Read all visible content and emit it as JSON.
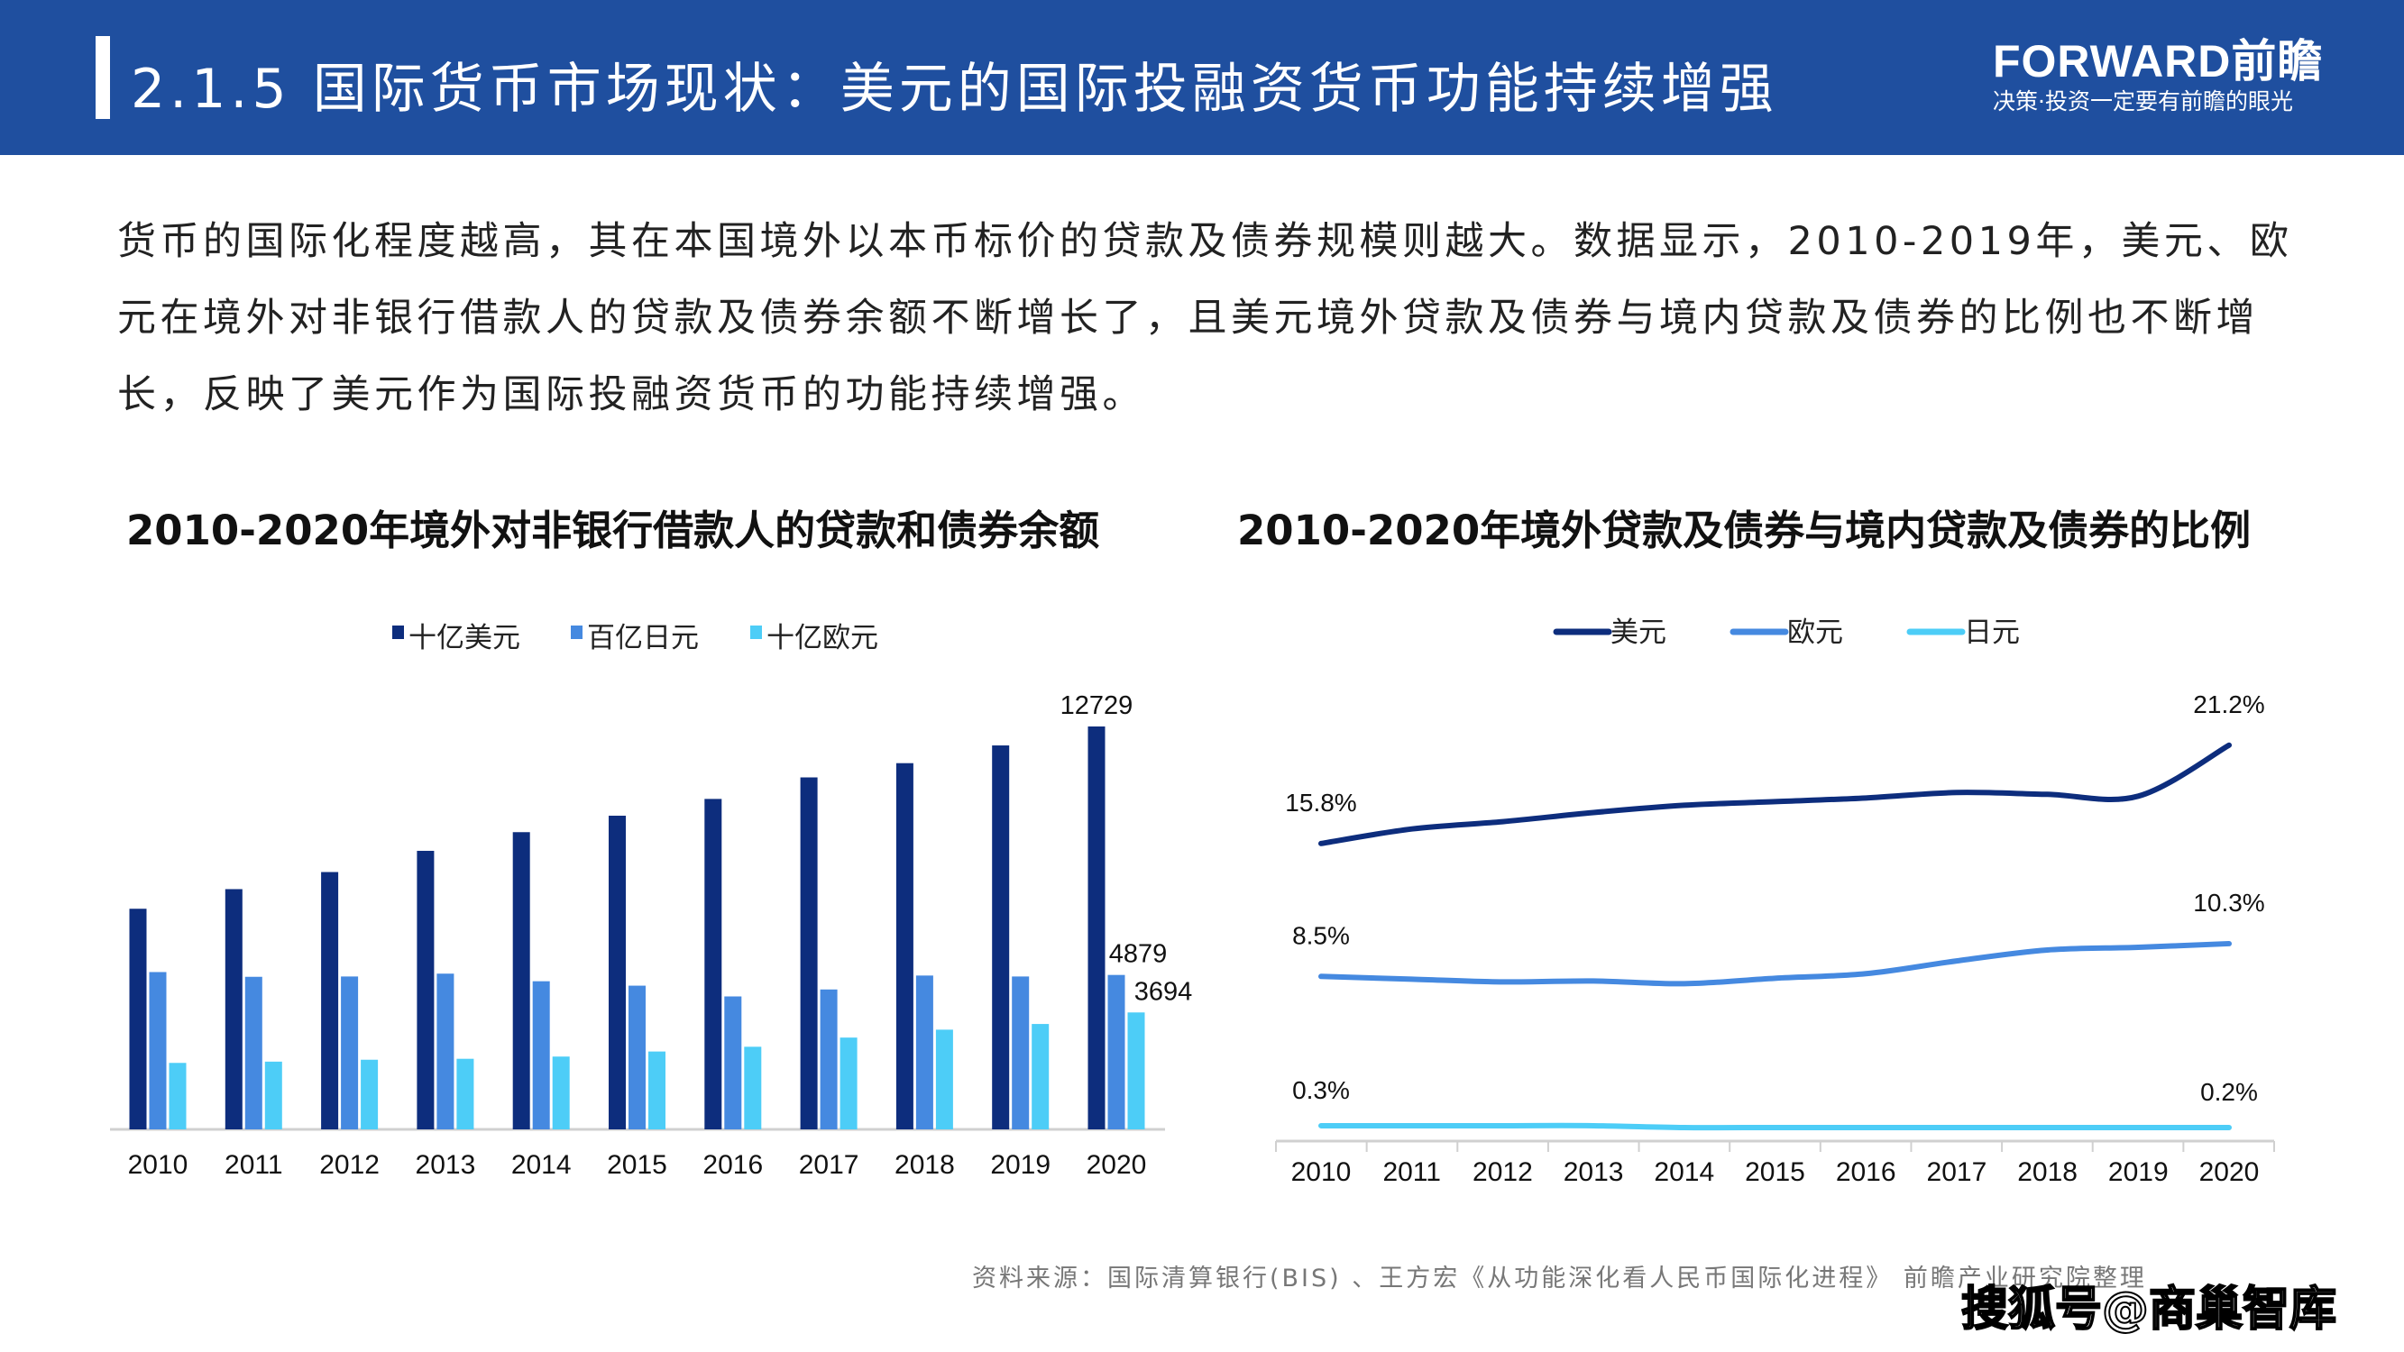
{
  "header": {
    "title": "2.1.5 国际货币市场现状：美元的国际投融资货币功能持续增强",
    "logo_text": "FORWARD前瞻",
    "logo_slogan": "决策·投资一定要有前瞻的眼光",
    "background_color": "#1f4f9f"
  },
  "paragraph": "货币的国际化程度越高，其在本国境外以本币标价的贷款及债券规模则越大。数据显示，2010-2019年，美元、欧元在境外对非银行借款人的贷款及债券余额不断增长了，且美元境外贷款及债券与境内贷款及债券的比例也不断增长，反映了美元作为国际投融资货币的功能持续增强。",
  "source": "资料来源：国际清算银行(BIS) 、王方宏《从功能深化看人民币国际化进程》 前瞻产业研究院整理",
  "watermark": "搜狐号@商巢智库",
  "chart_data": [
    {
      "type": "bar",
      "title": "2010-2020年境外对非银行借款人的贷款和债券余额",
      "categories": [
        "2010",
        "2011",
        "2012",
        "2013",
        "2014",
        "2015",
        "2016",
        "2017",
        "2018",
        "2019",
        "2020"
      ],
      "series": [
        {
          "name": "十亿美元",
          "color": "#0d2d7d",
          "values": [
            6970,
            7590,
            8130,
            8800,
            9390,
            9910,
            10440,
            11120,
            11570,
            12130,
            12729
          ]
        },
        {
          "name": "百亿日元",
          "color": "#4589e0",
          "values": [
            4970,
            4820,
            4830,
            4920,
            4680,
            4540,
            4200,
            4420,
            4860,
            4830,
            4879
          ]
        },
        {
          "name": "十亿欧元",
          "color": "#4dcdf7",
          "values": [
            2100,
            2140,
            2200,
            2230,
            2300,
            2460,
            2610,
            2900,
            3150,
            3330,
            3694
          ]
        }
      ],
      "data_labels": [
        {
          "series": 0,
          "index": 10,
          "text": "12729"
        },
        {
          "series": 1,
          "index": 10,
          "text": "4879"
        },
        {
          "series": 2,
          "index": 10,
          "text": "3694"
        }
      ],
      "legend": "top",
      "grid": false
    },
    {
      "type": "line",
      "title": "2010-2020年境外贷款及债券与境内贷款及债券的比例",
      "categories": [
        "2010",
        "2011",
        "2012",
        "2013",
        "2014",
        "2015",
        "2016",
        "2017",
        "2018",
        "2019",
        "2020"
      ],
      "unit": "%",
      "series": [
        {
          "name": "美元",
          "color": "#0d2d7d",
          "values": [
            15.8,
            16.6,
            17.0,
            17.5,
            17.9,
            18.1,
            18.3,
            18.6,
            18.5,
            18.4,
            21.2
          ]
        },
        {
          "name": "欧元",
          "color": "#4589e0",
          "values": [
            8.5,
            8.35,
            8.2,
            8.25,
            8.1,
            8.4,
            8.65,
            9.35,
            9.95,
            10.1,
            10.3
          ]
        },
        {
          "name": "日元",
          "color": "#4dcdf7",
          "values": [
            0.3,
            0.3,
            0.3,
            0.3,
            0.2,
            0.2,
            0.2,
            0.2,
            0.2,
            0.2,
            0.2
          ]
        }
      ],
      "data_labels": [
        {
          "series": 0,
          "index": 0,
          "text": "15.8%"
        },
        {
          "series": 0,
          "index": 10,
          "text": "21.2%"
        },
        {
          "series": 1,
          "index": 0,
          "text": "8.5%"
        },
        {
          "series": 1,
          "index": 10,
          "text": "10.3%"
        },
        {
          "series": 2,
          "index": 0,
          "text": "0.3%"
        },
        {
          "series": 2,
          "index": 10,
          "text": "0.2%"
        }
      ],
      "legend": "top",
      "grid": false
    }
  ]
}
